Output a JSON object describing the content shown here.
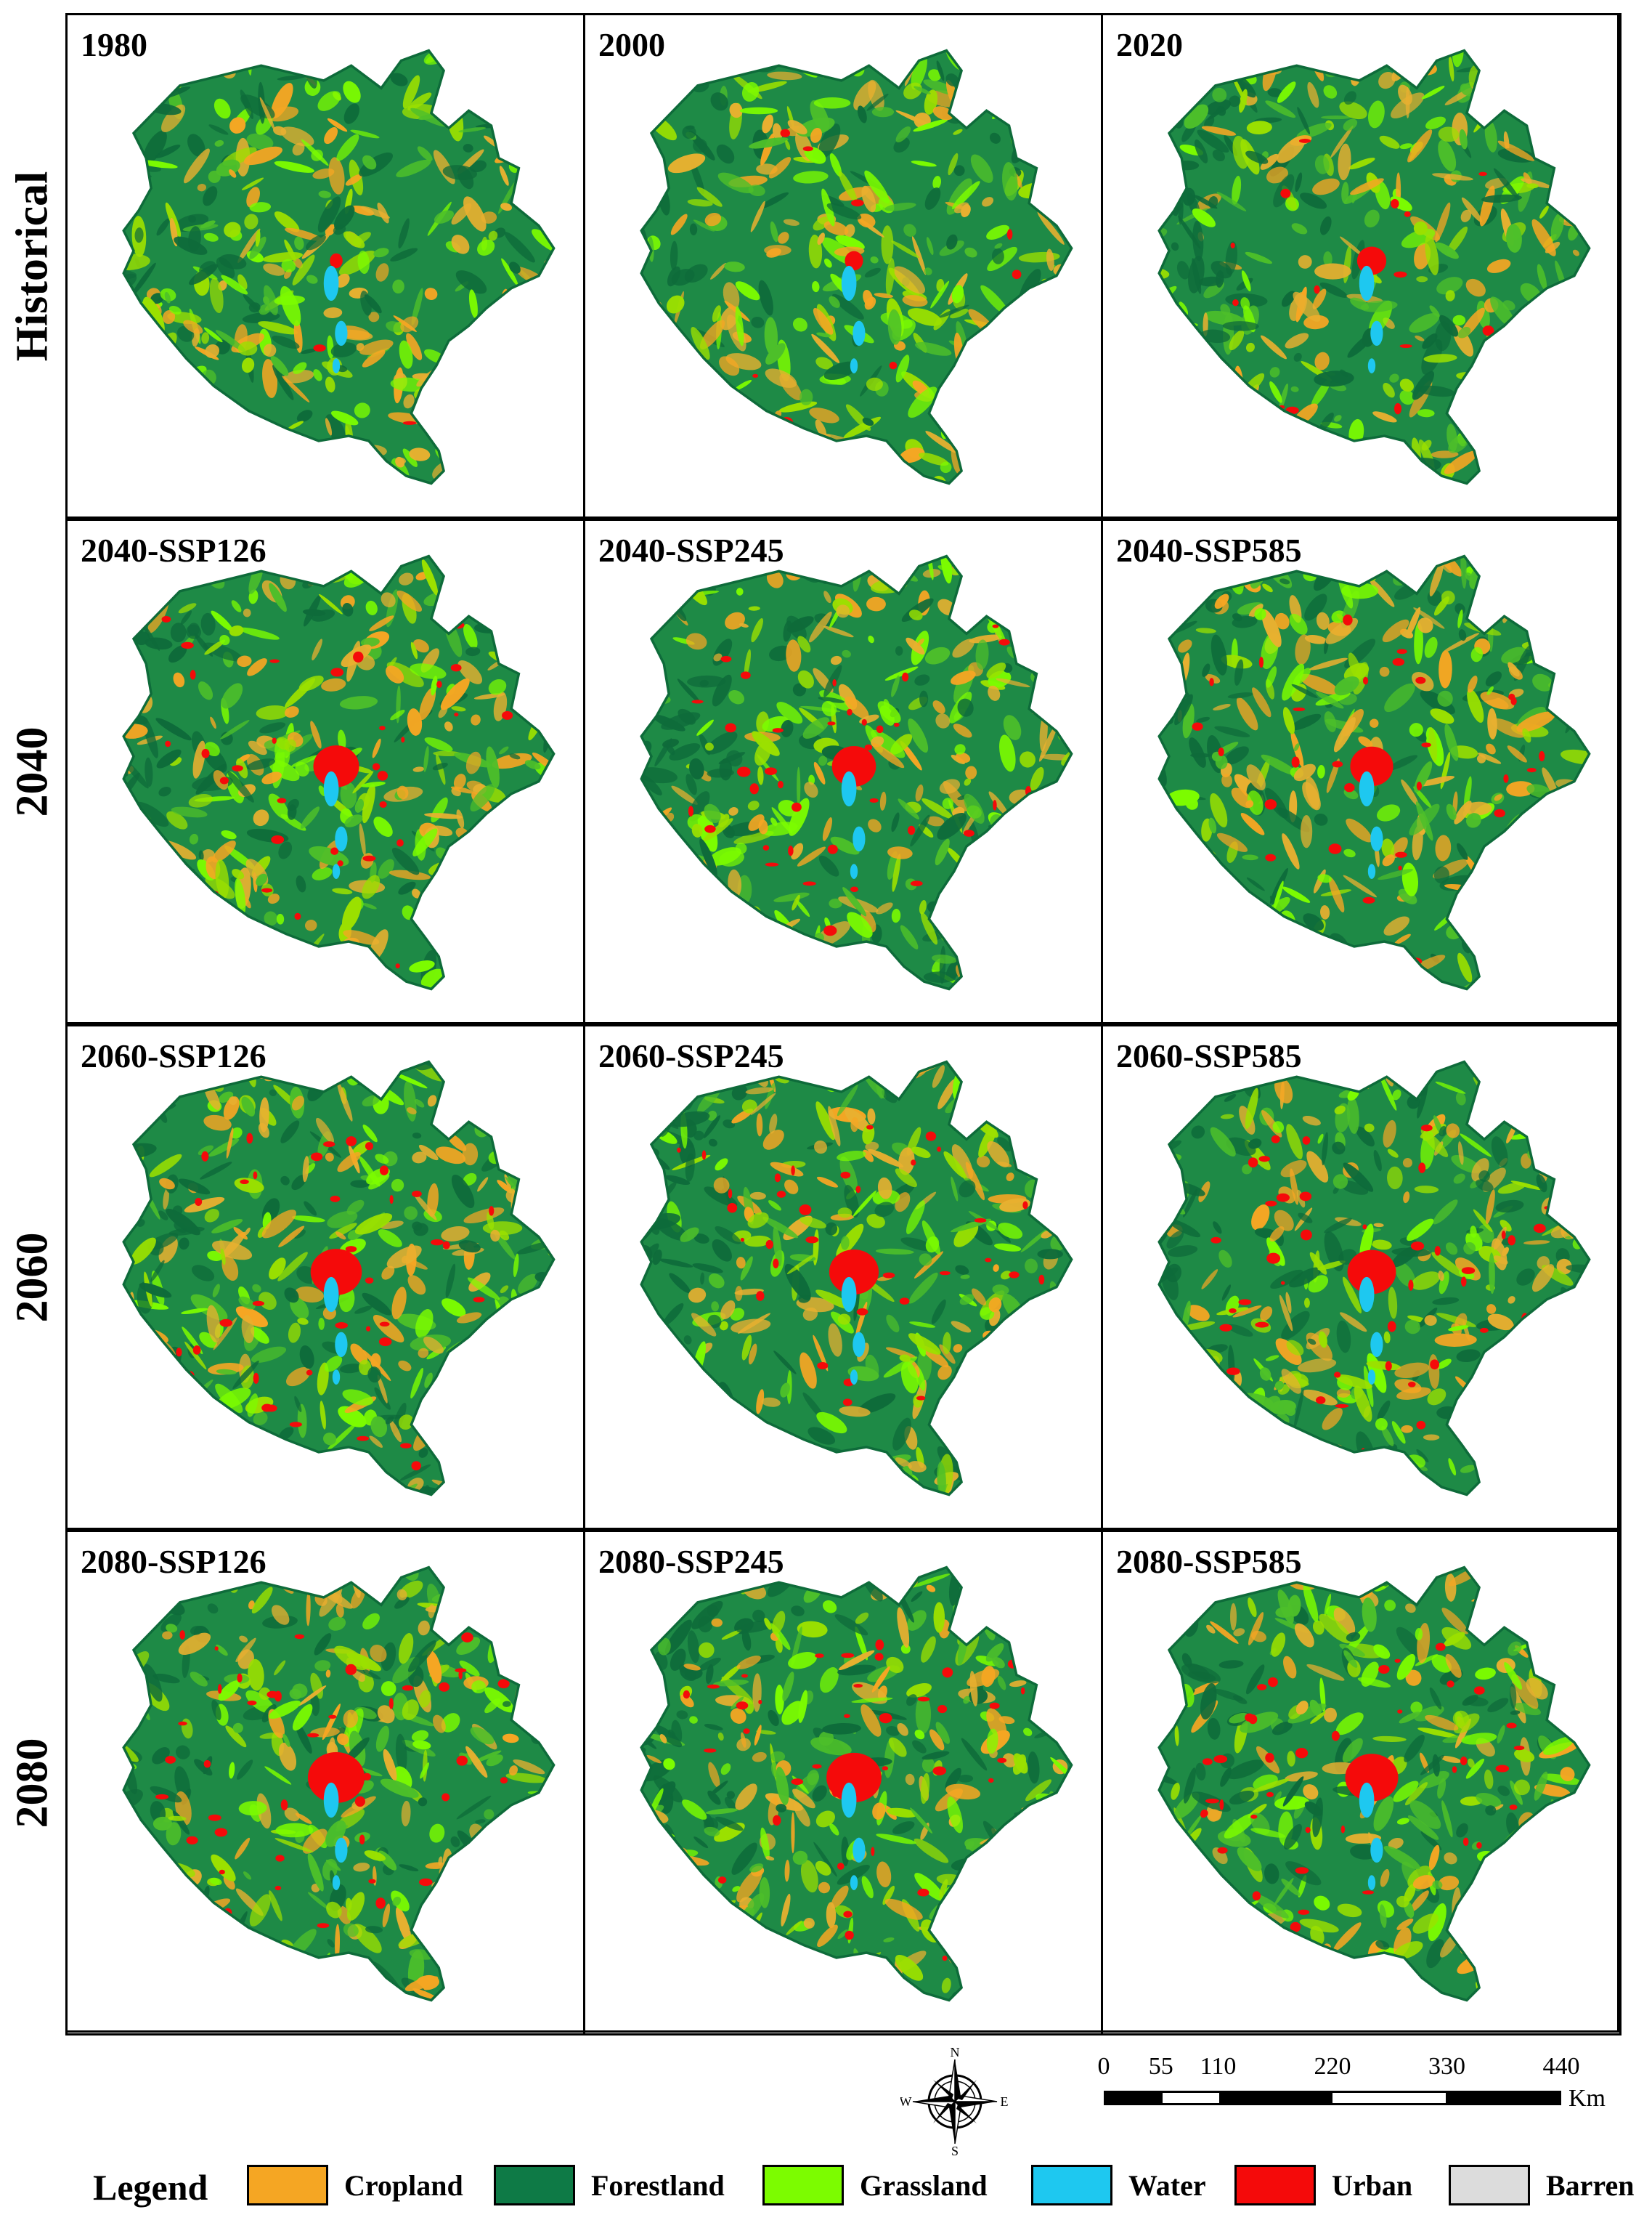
{
  "rows": [
    {
      "label": "Historical",
      "panels": [
        {
          "title": "1980",
          "urban_level": 0.05
        },
        {
          "title": "2000",
          "urban_level": 0.15
        },
        {
          "title": "2020",
          "urban_level": 0.35
        }
      ]
    },
    {
      "label": "2040",
      "panels": [
        {
          "title": "2040-SSP126",
          "urban_level": 0.65
        },
        {
          "title": "2040-SSP245",
          "urban_level": 0.62
        },
        {
          "title": "2040-SSP585",
          "urban_level": 0.6
        }
      ]
    },
    {
      "label": "2060",
      "panels": [
        {
          "title": "2060-SSP126",
          "urban_level": 0.75
        },
        {
          "title": "2060-SSP245",
          "urban_level": 0.72
        },
        {
          "title": "2060-SSP585",
          "urban_level": 0.7
        }
      ]
    },
    {
      "label": "2080",
      "panels": [
        {
          "title": "2080-SSP126",
          "urban_level": 0.85
        },
        {
          "title": "2080-SSP245",
          "urban_level": 0.82
        },
        {
          "title": "2080-SSP585",
          "urban_level": 0.78
        }
      ]
    }
  ],
  "compass": {
    "n": "N",
    "s": "S",
    "e": "E",
    "w": "W"
  },
  "scale": {
    "ticks": [
      "0",
      "55",
      "110",
      "220",
      "330",
      "440"
    ],
    "tick_values": [
      0,
      55,
      110,
      220,
      330,
      440
    ],
    "unit": "Km"
  },
  "legend": {
    "title": "Legend",
    "items": [
      {
        "label": "Cropland",
        "color": "#F5A623"
      },
      {
        "label": "Forestland",
        "color": "#0E7A46"
      },
      {
        "label": "Grassland",
        "color": "#7CFC00"
      },
      {
        "label": "Water",
        "color": "#1EC8F0"
      },
      {
        "label": "Urban",
        "color": "#F50A0A"
      },
      {
        "label": "Barren",
        "color": "#DCDCDC"
      }
    ]
  }
}
